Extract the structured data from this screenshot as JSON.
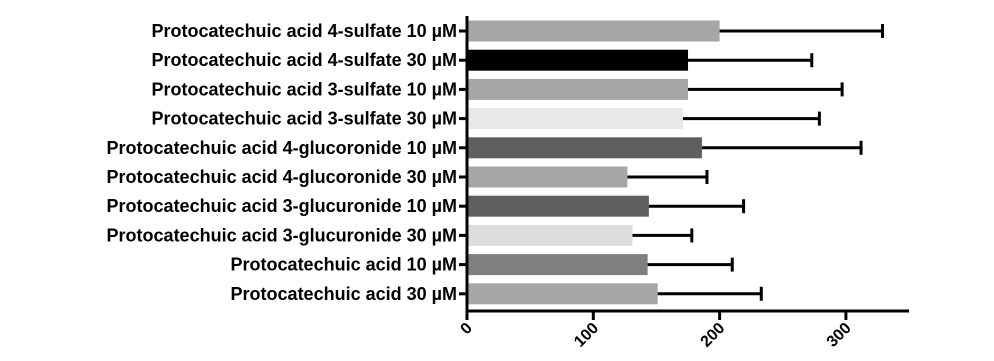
{
  "chart_data": {
    "type": "bar",
    "orientation": "horizontal",
    "categories": [
      "Protocatechuic acid 4-sulfate 10 µM",
      "Protocatechuic acid 4-sulfate 30 µM",
      "Protocatechuic acid 3-sulfate 10 µM",
      "Protocatechuic acid 3-sulfate 30 µM",
      "Protocatechuic acid 4-glucoronide 10 µM",
      "Protocatechuic acid 4-glucoronide 30 µM",
      "Protocatechuic acid 3-glucuronide 10 µM",
      "Protocatechuic acid 3-glucuronide 30 µM",
      "Protocatechuic acid 10 µM",
      "Protocatechuic acid 30 µM"
    ],
    "values": [
      200,
      175,
      175,
      171,
      186,
      127,
      144,
      131,
      143,
      151
    ],
    "errors": [
      129,
      98,
      122,
      108,
      126,
      63,
      75,
      47,
      67,
      82
    ],
    "bar_colors": [
      "#a6a6a6",
      "#000000",
      "#a6a6a6",
      "#e8e8e8",
      "#5f5f5f",
      "#a6a6a6",
      "#5f5f5f",
      "#dcdcdc",
      "#7f7f7f",
      "#a6a6a6"
    ],
    "xticks": [
      "0",
      "100",
      "200",
      "300"
    ],
    "xtick_values": [
      0,
      100,
      200,
      300
    ],
    "xlim": [
      0,
      350
    ],
    "title": "",
    "xlabel": "",
    "ylabel": "",
    "grid": false,
    "legend": "none"
  }
}
